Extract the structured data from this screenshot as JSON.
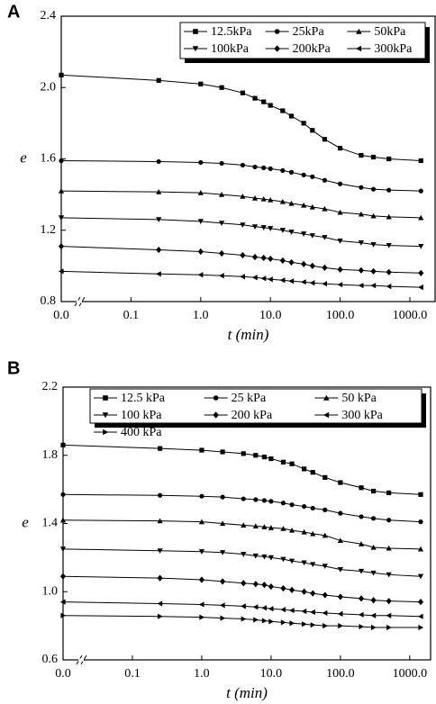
{
  "chart_data": [
    {
      "type": "line",
      "panel_label": "A",
      "x_label": "t (min)",
      "y_label": "e",
      "x_scale": "log",
      "xlim": [
        0.01,
        2300
      ],
      "ylim": [
        0.8,
        2.4
      ],
      "xticks": [
        {
          "value": 0.01,
          "label": "0.0"
        },
        0.1,
        {
          "value": 1,
          "label": "1.0"
        },
        {
          "value": 10,
          "label": "10.0"
        },
        {
          "value": 100,
          "label": "100.0"
        },
        {
          "value": 1000,
          "label": "1000.0"
        }
      ],
      "yticks": [
        0.8,
        1.2,
        1.6,
        {
          "value": 2,
          "label": "2.0"
        },
        2.4
      ],
      "x": [
        0.01,
        0.25,
        1,
        2,
        4,
        6,
        8,
        10,
        15,
        20,
        30,
        40,
        60,
        100,
        200,
        300,
        500,
        1440
      ],
      "series": [
        {
          "name": "12.5kPa",
          "color": "#000000",
          "marker": "square",
          "values": [
            2.07,
            2.04,
            2.02,
            2.0,
            1.97,
            1.94,
            1.92,
            1.9,
            1.87,
            1.84,
            1.8,
            1.76,
            1.71,
            1.66,
            1.62,
            1.61,
            1.6,
            1.59
          ]
        },
        {
          "name": "25kPa",
          "color": "#000000",
          "marker": "circle",
          "values": [
            1.59,
            1.585,
            1.58,
            1.575,
            1.565,
            1.555,
            1.55,
            1.545,
            1.535,
            1.525,
            1.51,
            1.5,
            1.48,
            1.46,
            1.44,
            1.43,
            1.425,
            1.42
          ]
        },
        {
          "name": "50kPa",
          "color": "#000000",
          "marker": "triangle-up",
          "values": [
            1.42,
            1.415,
            1.41,
            1.4,
            1.39,
            1.38,
            1.375,
            1.37,
            1.36,
            1.35,
            1.34,
            1.33,
            1.32,
            1.3,
            1.29,
            1.28,
            1.275,
            1.27
          ]
        },
        {
          "name": "100kPa",
          "color": "#000000",
          "marker": "triangle-down",
          "values": [
            1.27,
            1.26,
            1.25,
            1.24,
            1.23,
            1.22,
            1.215,
            1.21,
            1.2,
            1.19,
            1.18,
            1.17,
            1.16,
            1.14,
            1.13,
            1.12,
            1.115,
            1.11
          ]
        },
        {
          "name": "200kPa",
          "color": "#000000",
          "marker": "diamond",
          "values": [
            1.11,
            1.09,
            1.08,
            1.07,
            1.06,
            1.05,
            1.045,
            1.04,
            1.03,
            1.02,
            1.01,
            1.0,
            0.99,
            0.98,
            0.975,
            0.97,
            0.965,
            0.96
          ]
        },
        {
          "name": "300kPa",
          "color": "#000000",
          "marker": "triangle-left",
          "values": [
            0.97,
            0.955,
            0.95,
            0.945,
            0.94,
            0.935,
            0.93,
            0.925,
            0.92,
            0.915,
            0.91,
            0.905,
            0.9,
            0.895,
            0.89,
            0.89,
            0.885,
            0.88
          ]
        }
      ]
    },
    {
      "type": "line",
      "panel_label": "B",
      "x_label": "t (min)",
      "y_label": "e",
      "x_scale": "log",
      "xlim": [
        0.01,
        2000
      ],
      "ylim": [
        0.6,
        2.2
      ],
      "xticks": [
        {
          "value": 0.01,
          "label": "0.0"
        },
        0.1,
        {
          "value": 1,
          "label": "1.0"
        },
        {
          "value": 10,
          "label": "10.0"
        },
        {
          "value": 100,
          "label": "100.0"
        },
        {
          "value": 1000,
          "label": "1000.0"
        }
      ],
      "yticks": [
        0.6,
        {
          "value": 1,
          "label": "1.0"
        },
        1.4,
        1.8,
        2.2
      ],
      "x": [
        0.01,
        0.25,
        1,
        2,
        4,
        6,
        8,
        10,
        15,
        20,
        30,
        40,
        60,
        100,
        200,
        300,
        500,
        1440
      ],
      "series": [
        {
          "name": "12.5 kPa",
          "color": "#000000",
          "marker": "square",
          "values": [
            1.86,
            1.84,
            1.83,
            1.82,
            1.81,
            1.8,
            1.79,
            1.78,
            1.76,
            1.75,
            1.72,
            1.7,
            1.67,
            1.64,
            1.61,
            1.59,
            1.58,
            1.57
          ]
        },
        {
          "name": "25 kPa",
          "color": "#000000",
          "marker": "circle",
          "values": [
            1.57,
            1.565,
            1.56,
            1.555,
            1.545,
            1.54,
            1.535,
            1.53,
            1.52,
            1.51,
            1.5,
            1.49,
            1.48,
            1.46,
            1.44,
            1.43,
            1.42,
            1.41
          ]
        },
        {
          "name": "50 kPa",
          "color": "#000000",
          "marker": "triangle-up",
          "values": [
            1.42,
            1.415,
            1.41,
            1.4,
            1.39,
            1.385,
            1.38,
            1.375,
            1.37,
            1.36,
            1.35,
            1.34,
            1.33,
            1.3,
            1.28,
            1.26,
            1.255,
            1.25
          ]
        },
        {
          "name": "100 kPa",
          "color": "#000000",
          "marker": "triangle-down",
          "values": [
            1.25,
            1.24,
            1.235,
            1.23,
            1.22,
            1.21,
            1.205,
            1.2,
            1.19,
            1.18,
            1.17,
            1.16,
            1.15,
            1.13,
            1.12,
            1.11,
            1.1,
            1.09
          ]
        },
        {
          "name": "200 kPa",
          "color": "#000000",
          "marker": "diamond",
          "values": [
            1.09,
            1.08,
            1.07,
            1.06,
            1.05,
            1.045,
            1.04,
            1.03,
            1.02,
            1.01,
            1.0,
            0.99,
            0.98,
            0.97,
            0.96,
            0.95,
            0.945,
            0.94
          ]
        },
        {
          "name": "300 kPa",
          "color": "#000000",
          "marker": "triangle-left",
          "values": [
            0.94,
            0.93,
            0.925,
            0.92,
            0.915,
            0.91,
            0.905,
            0.9,
            0.895,
            0.89,
            0.885,
            0.88,
            0.875,
            0.87,
            0.865,
            0.86,
            0.86,
            0.855
          ]
        },
        {
          "name": "400 kPa",
          "color": "#000000",
          "marker": "triangle-right",
          "values": [
            0.86,
            0.855,
            0.85,
            0.845,
            0.84,
            0.835,
            0.83,
            0.825,
            0.82,
            0.815,
            0.81,
            0.805,
            0.8,
            0.8,
            0.795,
            0.79,
            0.79,
            0.79
          ]
        }
      ]
    }
  ]
}
